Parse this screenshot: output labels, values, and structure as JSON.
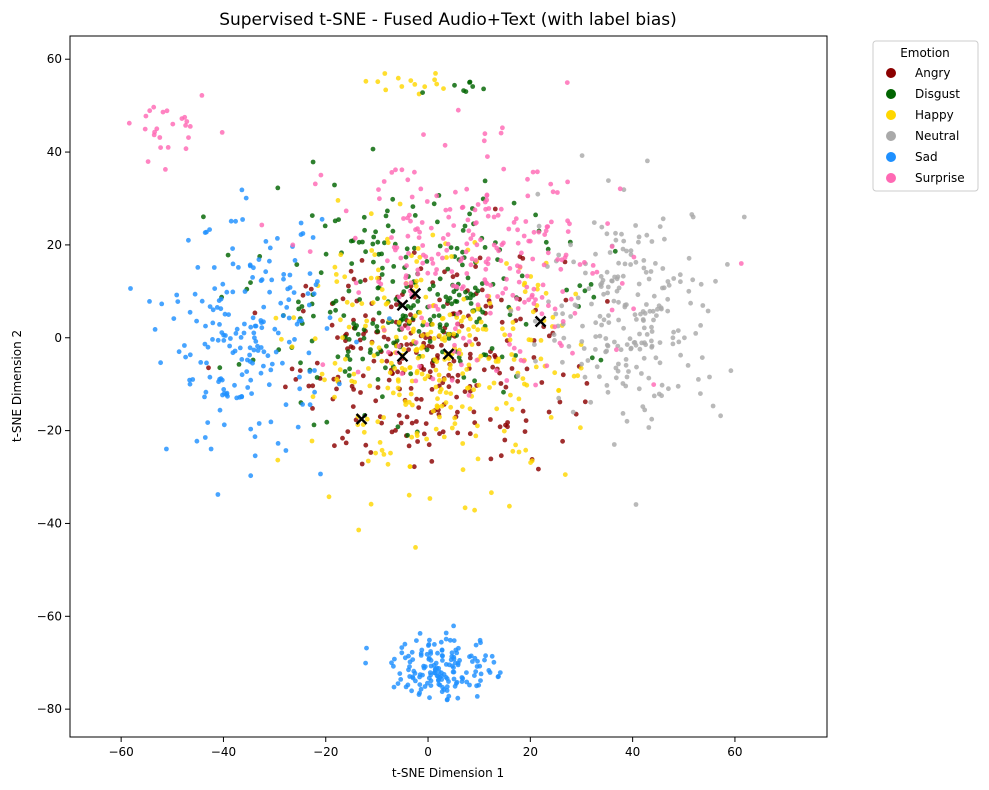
{
  "chart_data": {
    "type": "scatter",
    "title": "Supervised t-SNE - Fused Audio+Text (with label bias)",
    "xlabel": "t-SNE Dimension 1",
    "ylabel": "t-SNE Dimension 2",
    "xlim": [
      -70,
      78
    ],
    "ylim": [
      -86,
      65
    ],
    "xticks": [
      -60,
      -40,
      -20,
      0,
      20,
      40,
      60
    ],
    "yticks": [
      -80,
      -60,
      -40,
      -20,
      0,
      20,
      40,
      60
    ],
    "grid": false,
    "legend": {
      "title": "Emotion",
      "placement": "outside-top-right"
    },
    "series": [
      {
        "name": "Angry",
        "color": "#8b0000",
        "center": [
          0,
          -5
        ],
        "spread": [
          24,
          20
        ],
        "count": 260
      },
      {
        "name": "Disgust",
        "color": "#006400",
        "center": [
          -5,
          8
        ],
        "spread": [
          26,
          20
        ],
        "count": 260
      },
      {
        "name": "Happy",
        "color": "#ffd700",
        "center": [
          2,
          -5
        ],
        "spread": [
          24,
          22
        ],
        "count": 300
      },
      {
        "name": "Neutral",
        "color": "#a9a9a9",
        "center": [
          40,
          5
        ],
        "spread": [
          16,
          22
        ],
        "count": 230
      },
      {
        "name": "Sad",
        "color": "#1e90ff",
        "center": [
          -35,
          0
        ],
        "spread": [
          14,
          22
        ],
        "count": 200
      },
      {
        "name": "Surprise",
        "color": "#ff69b4",
        "center": [
          10,
          15
        ],
        "spread": [
          26,
          22
        ],
        "count": 260
      }
    ],
    "extra_clusters": [
      {
        "series": "Sad",
        "center": [
          3,
          -71
        ],
        "spread": [
          5,
          3.5
        ],
        "count": 160
      },
      {
        "series": "Surprise",
        "center": [
          -50,
          45
        ],
        "spread": [
          4,
          3
        ],
        "count": 25
      },
      {
        "series": "Happy",
        "center": [
          -3,
          54
        ],
        "spread": [
          5,
          1.2
        ],
        "count": 14
      },
      {
        "series": "Disgust",
        "center": [
          5,
          54
        ],
        "spread": [
          4,
          1
        ],
        "count": 8
      }
    ],
    "centroids": [
      {
        "x": -5,
        "y": 7
      },
      {
        "x": -2.5,
        "y": 9.5
      },
      {
        "x": 22,
        "y": 3.5
      },
      {
        "x": -5,
        "y": -4
      },
      {
        "x": 4,
        "y": -3.5
      },
      {
        "x": -13,
        "y": -17.5
      }
    ]
  }
}
